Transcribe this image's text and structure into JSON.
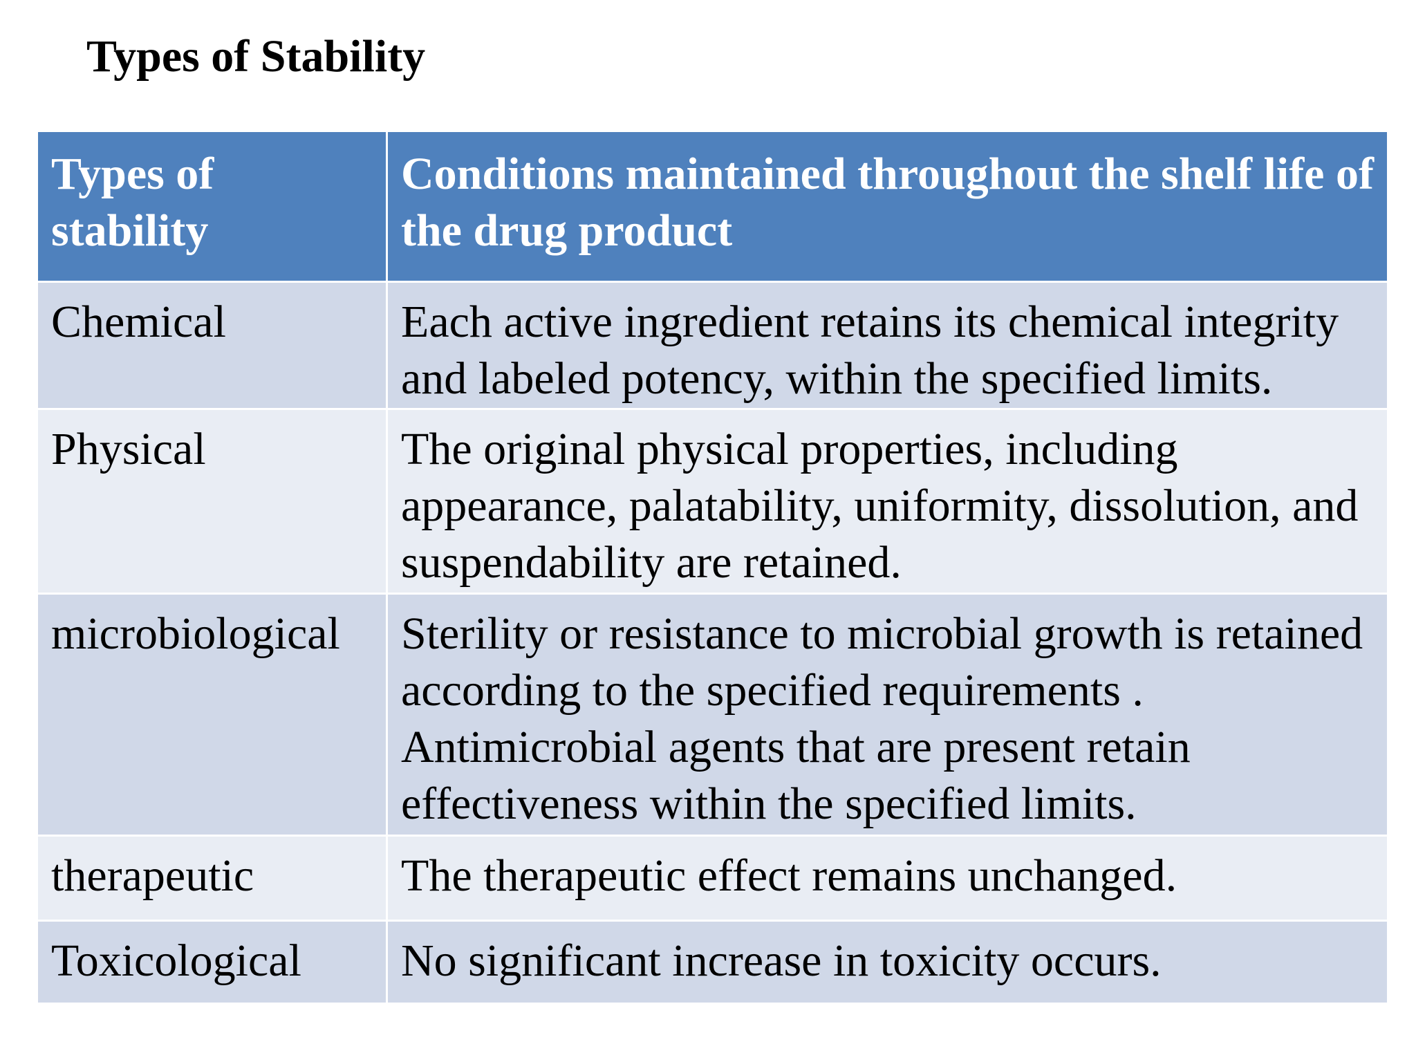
{
  "title": "Types of Stability",
  "table": {
    "headers": [
      "Types of stability",
      "Conditions maintained throughout the shelf life of the drug product"
    ],
    "rows": [
      {
        "type": "Chemical",
        "condition": "Each active ingredient retains its chemical integrity and labeled potency, within the specified limits."
      },
      {
        "type": "Physical",
        "condition": "The original physical properties, including appearance, palatability, uniformity, dissolution, and suspendability are retained."
      },
      {
        "type": "microbiological",
        "condition": "Sterility or resistance to microbial growth is retained according to the specified requirements . Antimicrobial agents that are present retain effectiveness within the specified limits."
      },
      {
        "type": "therapeutic",
        "condition": "The therapeutic effect remains unchanged."
      },
      {
        "type": "Toxicological",
        "condition": "No significant increase in toxicity occurs."
      }
    ]
  },
  "colors": {
    "header_bg": "#4f81bd",
    "row_odd_bg": "#d0d8e8",
    "row_even_bg": "#e9edf4",
    "header_text": "#ffffff",
    "body_text": "#000000"
  }
}
